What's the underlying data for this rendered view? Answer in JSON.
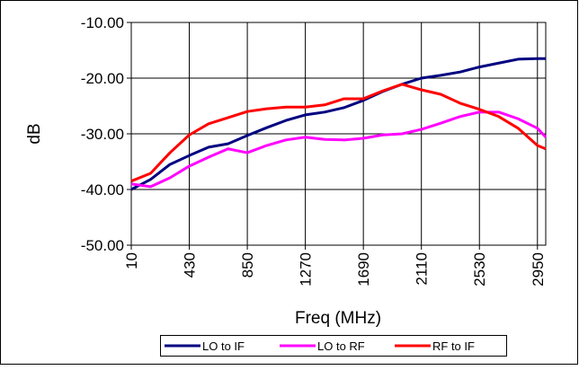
{
  "chart_data": {
    "type": "line",
    "x_label": "Freq (MHz)",
    "y_label": "dB",
    "x": [
      10,
      150,
      290,
      430,
      570,
      710,
      850,
      990,
      1130,
      1270,
      1410,
      1550,
      1690,
      1830,
      1970,
      2110,
      2250,
      2390,
      2530,
      2670,
      2810,
      2950,
      3010
    ],
    "series": [
      {
        "name": "LO to IF",
        "color": "#000080",
        "values": [
          -40,
          -38.2,
          -35.5,
          -33.9,
          -32.4,
          -31.8,
          -30.3,
          -28.9,
          -27.6,
          -26.6,
          -26.1,
          -25.3,
          -24,
          -22.4,
          -21.1,
          -20,
          -19.5,
          -18.9,
          -18,
          -17.3,
          -16.6,
          -16.5,
          -16.5
        ]
      },
      {
        "name": "LO to RF",
        "color": "#ff00ff",
        "values": [
          -39,
          -39.5,
          -37.9,
          -35.8,
          -34.2,
          -32.7,
          -33.4,
          -32.1,
          -31.1,
          -30.6,
          -31,
          -31.1,
          -30.8,
          -30.2,
          -30,
          -29.2,
          -28.1,
          -26.9,
          -26.1,
          -26.1,
          -27.3,
          -29,
          -30.6
        ]
      },
      {
        "name": "RF to IF",
        "color": "#ff0000",
        "values": [
          -38.5,
          -37.1,
          -33.4,
          -30.2,
          -28.2,
          -27.1,
          -26,
          -25.5,
          -25.2,
          -25.2,
          -24.8,
          -23.7,
          -23.7,
          -22.3,
          -21.1,
          -22.1,
          -22.9,
          -24.5,
          -25.6,
          -26.9,
          -29,
          -32.1,
          -32.7
        ]
      }
    ],
    "xlim": [
      10,
      3010
    ],
    "xticks": [
      10,
      430,
      850,
      1270,
      1690,
      2110,
      2530,
      2950
    ],
    "ylim": [
      -50,
      -10
    ],
    "yticks": [
      {
        "value": -50,
        "label": "-50.00"
      },
      {
        "value": -40,
        "label": "-40.00"
      },
      {
        "value": -30,
        "label": "-30.00"
      },
      {
        "value": -20,
        "label": "-20.00"
      },
      {
        "value": -10,
        "label": "-10.00"
      }
    ],
    "grid": true,
    "legend": "bottom"
  }
}
